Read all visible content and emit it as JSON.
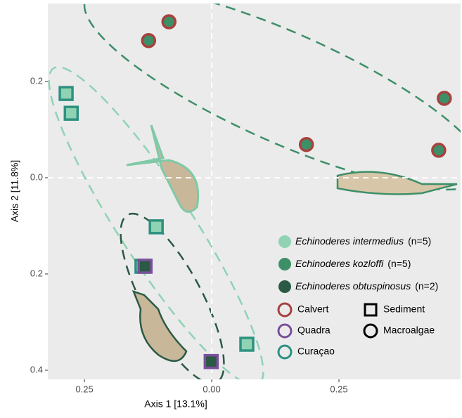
{
  "chart_data": {
    "type": "scatter",
    "xlabel": "Axis 1   [13.1%]",
    "ylabel": "Axis 2   [11.8%]",
    "xlim": [
      -0.322,
      0.489
    ],
    "ylim": [
      -0.419,
      0.362
    ],
    "xticks": [
      {
        "value": -0.25,
        "label": "0.25"
      },
      {
        "value": 0,
        "label": "0.00"
      },
      0.25
    ],
    "yticks": [
      {
        "value": -0.4,
        "label": "0.4"
      },
      {
        "value": -0.2,
        "label": "0.2"
      },
      {
        "value": 0,
        "label": "0.0"
      },
      0.2
    ],
    "zero_lines": true,
    "series": [
      {
        "name": "Echinoderes intermedius",
        "n": "(n=5)",
        "color": "#8fd3b4",
        "x": [
          -0.286,
          -0.276,
          -0.109,
          0.069,
          -0.137
        ],
        "y": [
          0.175,
          0.134,
          -0.102,
          -0.346,
          -0.184
        ],
        "site": [
          "Curaçao",
          "Curaçao",
          "Curaçao",
          "Curaçao",
          "Curaçao"
        ],
        "substrate": [
          "Sediment",
          "Sediment",
          "Sediment",
          "Sediment",
          "Sediment"
        ]
      },
      {
        "name": "Echinoderes kozloffi",
        "n": "(n=5)",
        "color": "#3d8f68",
        "x": [
          -0.084,
          -0.124,
          0.186,
          0.457,
          0.446
        ],
        "y": [
          0.324,
          0.285,
          0.069,
          0.165,
          0.057
        ],
        "site": [
          "Calvert",
          "Calvert",
          "Calvert",
          "Calvert",
          "Calvert"
        ],
        "substrate": [
          "Macroalgae",
          "Macroalgae",
          "Macroalgae",
          "Macroalgae",
          "Macroalgae"
        ]
      },
      {
        "name": "Echinoderes obtuspinosus",
        "n": "(n=2)",
        "color": "#2a5a44",
        "x": [
          -0.131,
          -0.001
        ],
        "y": [
          -0.184,
          -0.382
        ],
        "site": [
          "Quadra",
          "Quadra"
        ],
        "substrate": [
          "Sediment",
          "Sediment"
        ]
      }
    ],
    "sites": [
      {
        "name": "Calvert",
        "color": "#a8413c"
      },
      {
        "name": "Quadra",
        "color": "#7b4f9c"
      },
      {
        "name": "Curaçao",
        "color": "#2e9180"
      }
    ],
    "substrates": [
      {
        "name": "Sediment",
        "shape": "square"
      },
      {
        "name": "Macroalgae",
        "shape": "circle"
      }
    ]
  }
}
